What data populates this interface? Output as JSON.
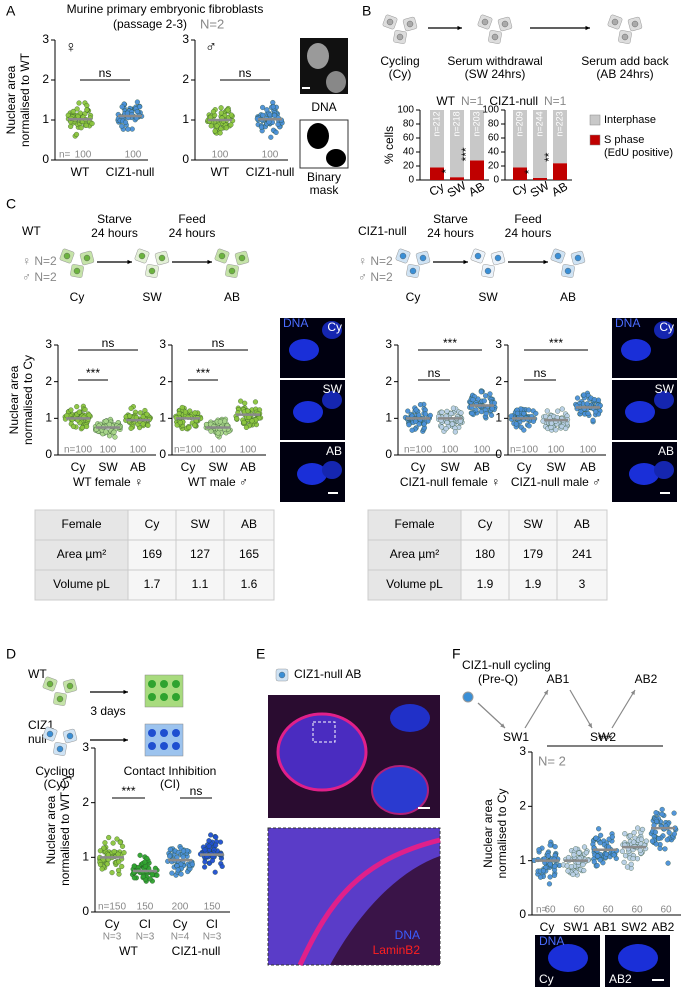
{
  "chart_data": [
    {
      "type": "dot",
      "symbol": "♀",
      "categories": [
        "WT",
        "CIZ1-null"
      ],
      "values": [
        1.02,
        1.1
      ],
      "colors": [
        "#8cc63e",
        "#4a90d9"
      ],
      "ylim": [
        0,
        3
      ],
      "yticks": [
        0,
        1,
        2,
        3
      ],
      "y_label": "Nuclear area normalised to WT",
      "stats": [
        "ns"
      ],
      "n_prefix": "n=",
      "n_labels": [
        "100",
        "100"
      ]
    },
    {
      "type": "dot",
      "symbol": "♂",
      "categories": [
        "WT",
        "CIZ1-null"
      ],
      "values": [
        1.0,
        1.02
      ],
      "colors": [
        "#8cc63e",
        "#4a90d9"
      ],
      "ylim": [
        0,
        3
      ],
      "yticks": [
        0,
        1,
        2,
        3
      ],
      "stats": [
        "ns"
      ],
      "n_labels": [
        "100",
        "100"
      ]
    },
    {
      "type": "bar",
      "title": "WT",
      "subtitle": "N=1",
      "categories": [
        "Cy",
        "SW",
        "AB"
      ],
      "series": [
        {
          "name": "S phase (EdU positive)",
          "color": "#c00000",
          "values": [
            18,
            4,
            28
          ]
        },
        {
          "name": "Interphase",
          "color": "#c8c8c8",
          "values": [
            82,
            96,
            72
          ]
        }
      ],
      "ylim": [
        0,
        100
      ],
      "yticks": [
        0,
        20,
        40,
        60,
        80,
        100
      ],
      "y_label": "% cells",
      "n_labels": [
        "n=212",
        "n=218",
        "n=203"
      ],
      "stars": [
        null,
        "*",
        "***"
      ]
    },
    {
      "type": "bar",
      "title": "CIZ1-null",
      "subtitle": "N=1",
      "categories": [
        "Cy",
        "SW",
        "AB"
      ],
      "series": [
        {
          "name": "S phase (EdU positive)",
          "color": "#c00000",
          "values": [
            18,
            3,
            24
          ]
        },
        {
          "name": "Interphase",
          "color": "#c8c8c8",
          "values": [
            82,
            97,
            76
          ]
        }
      ],
      "ylim": [
        0,
        100
      ],
      "yticks": [
        0,
        20,
        40,
        60,
        80,
        100
      ],
      "n_labels": [
        "n=209",
        "n=244",
        "n=223"
      ],
      "stars": [
        null,
        "*",
        "**"
      ],
      "legend": "right"
    },
    {
      "type": "dot",
      "categories": [
        "Cy",
        "SW",
        "AB"
      ],
      "values": [
        1.0,
        0.75,
        0.95
      ],
      "colors": [
        "#8cc63e",
        "#a8d68a",
        "#8cc63e"
      ],
      "ylim": [
        0,
        3
      ],
      "yticks": [
        0,
        1,
        2,
        3
      ],
      "y_label": "Nuclear area normalised to Cy",
      "stats": [
        "ns",
        "***"
      ],
      "n_labels": [
        "n=100",
        "100",
        "100"
      ],
      "group_label": "WT female ♀"
    },
    {
      "type": "dot",
      "categories": [
        "Cy",
        "SW",
        "AB"
      ],
      "values": [
        1.0,
        0.75,
        1.1
      ],
      "colors": [
        "#8cc63e",
        "#a8d68a",
        "#8cc63e"
      ],
      "ylim": [
        0,
        3
      ],
      "yticks": [
        0,
        1,
        2,
        3
      ],
      "stats": [
        "ns",
        "***"
      ],
      "n_labels": [
        "n=100",
        "100",
        "100"
      ],
      "group_label": "WT male ♂"
    },
    {
      "type": "dot",
      "categories": [
        "Cy",
        "SW",
        "AB"
      ],
      "values": [
        1.0,
        1.0,
        1.35
      ],
      "colors": [
        "#4a90d9",
        "#b8cfe6",
        "#4a90d9"
      ],
      "ylim": [
        0,
        3
      ],
      "yticks": [
        0,
        1,
        2,
        3
      ],
      "stats": [
        "***",
        "ns"
      ],
      "n_labels": [
        "n=100",
        "100",
        "100"
      ],
      "group_label": "CIZ1-null female ♀"
    },
    {
      "type": "dot",
      "categories": [
        "Cy",
        "SW",
        "AB"
      ],
      "values": [
        1.0,
        0.95,
        1.3
      ],
      "colors": [
        "#4a90d9",
        "#b8cfe6",
        "#4a90d9"
      ],
      "ylim": [
        0,
        3
      ],
      "yticks": [
        0,
        1,
        2,
        3
      ],
      "stats": [
        "***",
        "ns"
      ],
      "n_labels": [
        "n=100",
        "100",
        "100"
      ],
      "group_label": "CIZ1-null male ♂"
    },
    {
      "type": "dot",
      "categories": [
        "Cy",
        "CI",
        "Cy",
        "CI"
      ],
      "values": [
        1.0,
        0.75,
        0.95,
        1.05
      ],
      "colors": [
        "#8cc63e",
        "#2fa32f",
        "#4a90d9",
        "#1f4fd0"
      ],
      "ylim": [
        0,
        3
      ],
      "yticks": [
        0,
        1,
        2,
        3
      ],
      "y_label": "Nuclear area normalised to WT Cy",
      "stats": [
        "***",
        "ns"
      ],
      "n_labels": [
        "n=150",
        "150",
        "200",
        "150"
      ],
      "sub_labels": [
        "N=3",
        "N=3",
        "N=4",
        "N=3"
      ],
      "groups": [
        "WT",
        "CIZ1-null"
      ]
    },
    {
      "type": "dot",
      "categories": [
        "Cy",
        "SW1",
        "AB1",
        "SW2",
        "AB2"
      ],
      "values": [
        1.0,
        1.0,
        1.2,
        1.25,
        1.6
      ],
      "colors": [
        "#4a90d9",
        "#b8cfe6",
        "#4a90d9",
        "#b8cfe6",
        "#4a90d9"
      ],
      "ylim": [
        0,
        3
      ],
      "yticks": [
        0,
        1,
        2,
        3
      ],
      "y_label": "Nuclear area normalised to Cy",
      "stats": [
        "***"
      ],
      "n_prefix": "n=",
      "n_labels": [
        "60",
        "60",
        "60",
        "60",
        "60"
      ],
      "note": "N= 2"
    }
  ],
  "panels": {
    "labels": [
      "A",
      "B",
      "C",
      "D",
      "E",
      "F"
    ],
    "a": {
      "title": "Murine primary embryonic fibroblasts",
      "subtitle": "(passage 2-3)",
      "n": "N=2",
      "images": [
        "DNA",
        "Binary",
        "mask"
      ]
    },
    "b": {
      "steps": [
        [
          "Cycling",
          "(Cy)"
        ],
        [
          "Serum withdrawal",
          "(SW 24hrs)"
        ],
        [
          "Serum add back",
          "(AB 24hrs)"
        ]
      ]
    },
    "c": {
      "wt": {
        "name": "WT",
        "female": "♀ N=2",
        "male": "♂ N=2"
      },
      "ciz1": {
        "name": "CIZ1-null",
        "female": "♀ N=2",
        "male": "♂ N=2"
      },
      "arrows": [
        [
          "Starve",
          "24 hours"
        ],
        [
          "Feed",
          "24 hours"
        ]
      ],
      "stages": [
        "Cy",
        "SW",
        "AB"
      ],
      "image_labels": [
        "DNA",
        "Cy",
        "SW",
        "AB"
      ],
      "tables": [
        {
          "rows": [
            [
              "Female",
              "Cy",
              "SW",
              "AB"
            ],
            [
              "Area µm²",
              "169",
              "127",
              "165"
            ],
            [
              "Volume pL",
              "1.7",
              "1.1",
              "1.6"
            ]
          ]
        },
        {
          "rows": [
            [
              "Female",
              "Cy",
              "SW",
              "AB"
            ],
            [
              "Area µm²",
              "180",
              "179",
              "241"
            ],
            [
              "Volume pL",
              "1.9",
              "1.9",
              "3"
            ]
          ]
        }
      ]
    },
    "d": {
      "wt": "WT",
      "ciz1": [
        "CIZ1",
        "null"
      ],
      "days": "3 days",
      "left": [
        "Cycling",
        "(Cy)"
      ],
      "right": [
        "Contact Inhibition",
        "(CI)"
      ]
    },
    "e": {
      "legend": "CIZ1-null AB",
      "stains": [
        "DNA",
        "LaminB2"
      ]
    },
    "f": {
      "start": [
        "CIZ1-null cycling",
        "(Pre-Q)"
      ],
      "steps": [
        "SW1",
        "AB1",
        "SW2",
        "AB2"
      ],
      "image_labels": [
        "DNA",
        "Cy",
        "AB2"
      ]
    }
  }
}
